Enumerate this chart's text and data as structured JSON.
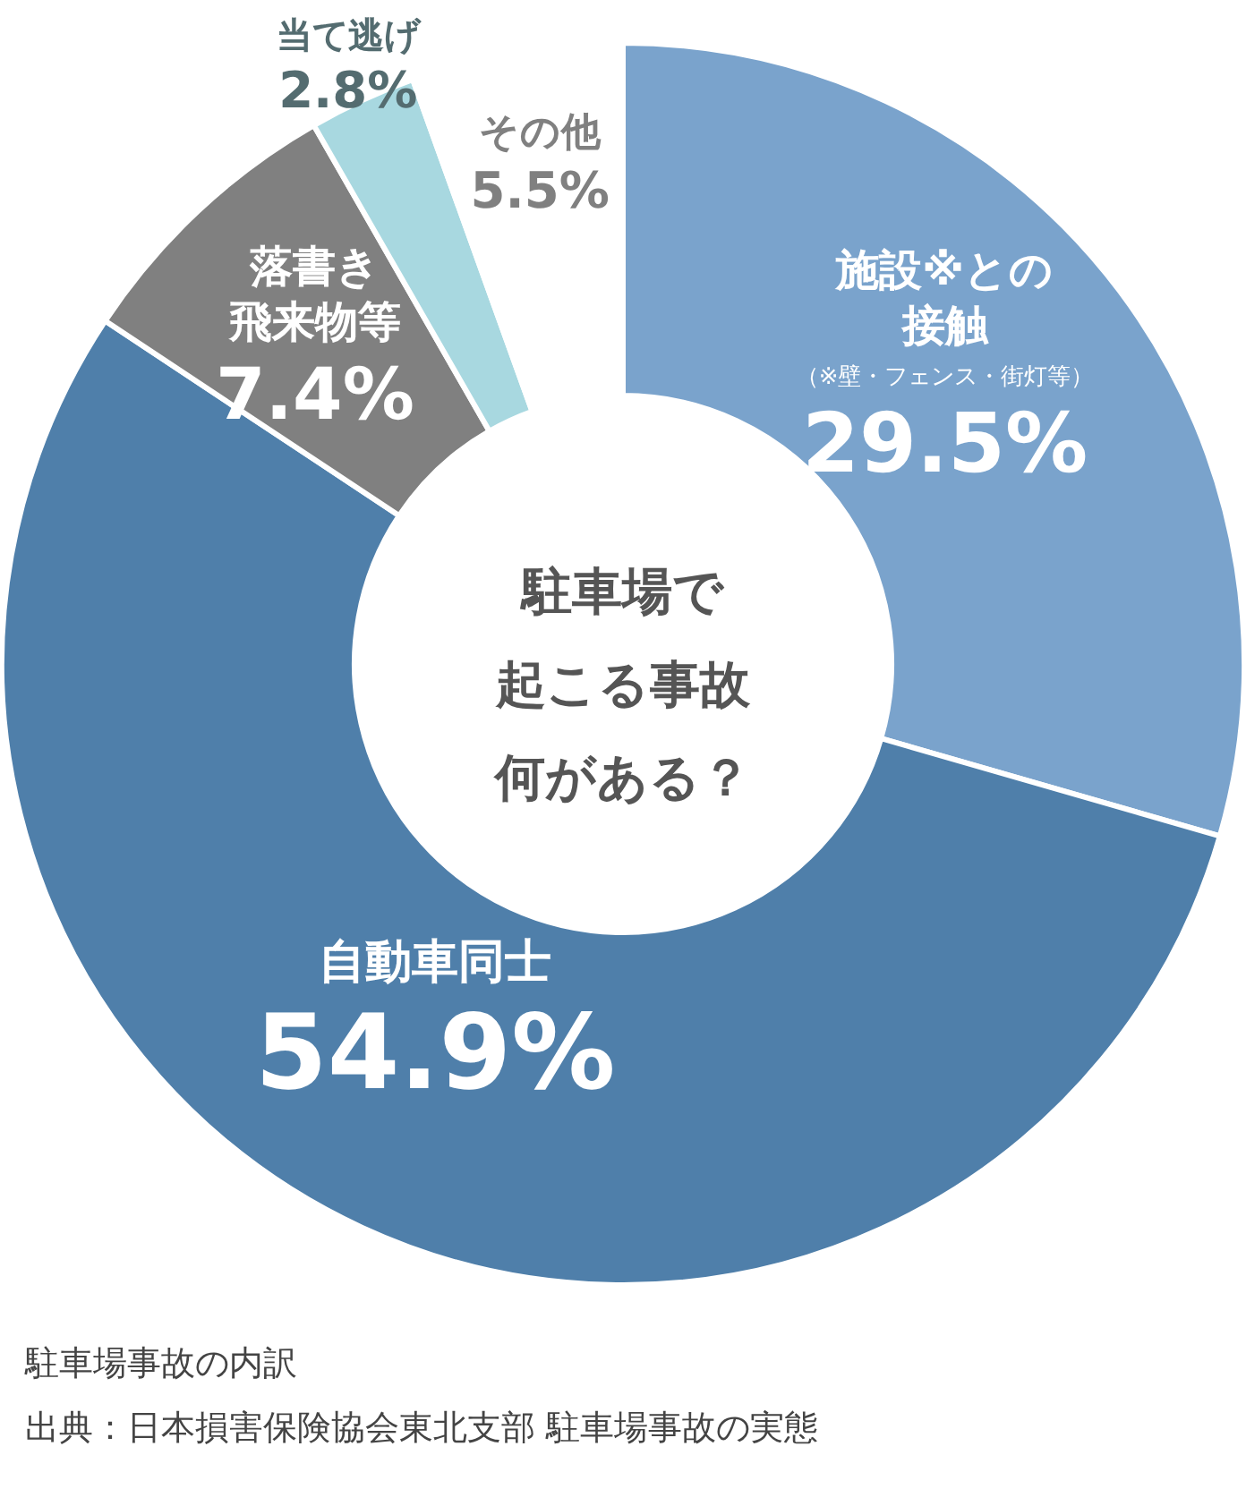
{
  "chart_data": {
    "type": "donut",
    "title": "駐車場で起こる事故何がある？",
    "categories": [
      "施設※との接触",
      "自動車同士",
      "落書き飛来物等",
      "当て逃げ",
      "その他"
    ],
    "values": [
      29.5,
      54.9,
      7.4,
      2.8,
      5.5
    ],
    "value_labels": [
      "29.5%",
      "54.9%",
      "7.4%",
      "2.8%",
      "5.5%"
    ],
    "colors": [
      "#7aa3cc",
      "#4f7faa",
      "#808080",
      "#a8d8e0",
      "#ffffff"
    ],
    "annotations": [
      "（※壁・フェンス・街灯等）",
      "駐車場事故の内訳",
      "出典：日本損害保険協会東北支部 駐車場事故の実態"
    ]
  }
}
